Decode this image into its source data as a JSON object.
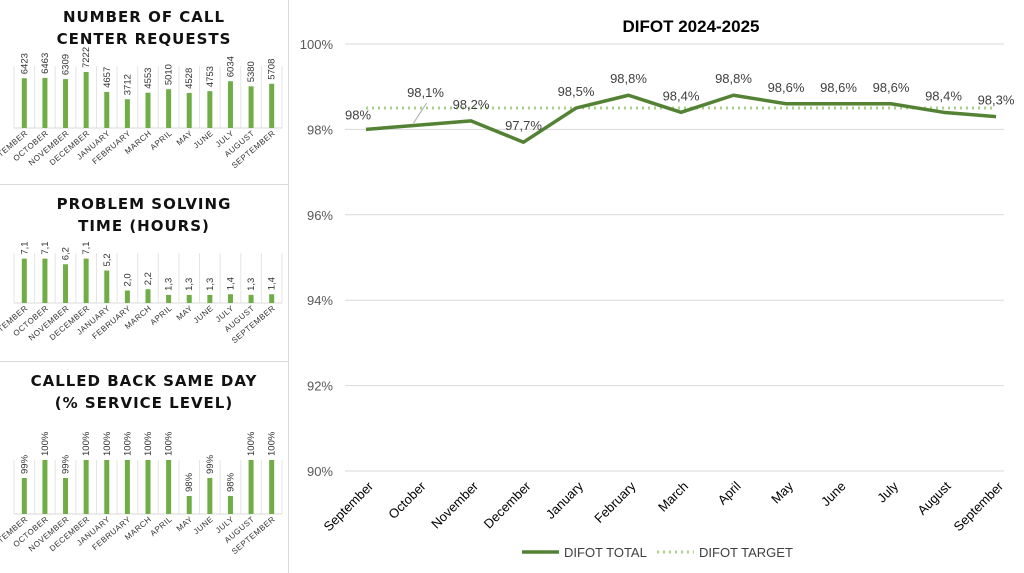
{
  "chart_data": [
    {
      "type": "bar",
      "title": "NUMBER OF CALL CENTER REQUESTS",
      "categories": [
        "SEPTEMBER",
        "OCTOBER",
        "NOVEMBER",
        "DECEMBER",
        "JANUARY",
        "FEBRUARY",
        "MARCH",
        "APRIL",
        "MAY",
        "JUNE",
        "JULY",
        "AUGUST",
        "SEPTEMBER"
      ],
      "values": [
        6423,
        6463,
        6309,
        7222,
        4657,
        3712,
        4553,
        5010,
        4528,
        4753,
        6034,
        5380,
        5708
      ],
      "labels": [
        "6423",
        "6463",
        "6309",
        "7222",
        "4657",
        "3712",
        "4553",
        "5010",
        "4528",
        "4753",
        "6034",
        "5380",
        "5708"
      ],
      "ylim": [
        0,
        8000
      ],
      "color": "#70ad47"
    },
    {
      "type": "bar",
      "title": "PROBLEM SOLVING TIME (HOURS)",
      "categories": [
        "SEPTEMBER",
        "OCTOBER",
        "NOVEMBER",
        "DECEMBER",
        "JANUARY",
        "FEBRUARY",
        "MARCH",
        "APRIL",
        "MAY",
        "JUNE",
        "JULY",
        "AUGUST",
        "SEPTEMBER"
      ],
      "values": [
        7.1,
        7.1,
        6.2,
        7.1,
        5.2,
        2.0,
        2.2,
        1.3,
        1.3,
        1.3,
        1.4,
        1.3,
        1.4
      ],
      "labels": [
        "7,1",
        "7,1",
        "6,2",
        "7,1",
        "5,2",
        "2,0",
        "2,2",
        "1,3",
        "1,3",
        "1,3",
        "1,4",
        "1,3",
        "1,4"
      ],
      "ylim": [
        0,
        8
      ],
      "color": "#70ad47"
    },
    {
      "type": "bar",
      "title": "CALLED BACK SAME DAY (% SERVICE LEVEL)",
      "categories": [
        "SEPTEMBER",
        "OCTOBER",
        "NOVEMBER",
        "DECEMBER",
        "JANUARY",
        "FEBRUARY",
        "MARCH",
        "APRIL",
        "MAY",
        "JUNE",
        "JULY",
        "AUGUST",
        "SEPTEMBER"
      ],
      "values": [
        99,
        100,
        99,
        100,
        100,
        100,
        100,
        100,
        98,
        99,
        98,
        100,
        100
      ],
      "labels": [
        "99%",
        "100%",
        "99%",
        "100%",
        "100%",
        "100%",
        "100%",
        "100%",
        "98%",
        "99%",
        "98%",
        "100%",
        "100%"
      ],
      "ylim": [
        97,
        100
      ],
      "color": "#70ad47"
    },
    {
      "type": "line",
      "title": "DIFOT 2024-2025",
      "categories": [
        "September",
        "October",
        "November",
        "December",
        "January",
        "February",
        "March",
        "April",
        "May",
        "June",
        "July",
        "August",
        "September"
      ],
      "ylim": [
        90,
        100
      ],
      "yticks": [
        "90%",
        "92%",
        "94%",
        "96%",
        "98%",
        "100%"
      ],
      "ytick_values": [
        90,
        92,
        94,
        96,
        98,
        100
      ],
      "grid": true,
      "legend": "bottom",
      "series": [
        {
          "name": "DIFOT TOTAL",
          "values": [
            98.0,
            98.1,
            98.2,
            97.7,
            98.5,
            98.8,
            98.4,
            98.8,
            98.6,
            98.6,
            98.6,
            98.4,
            98.3
          ],
          "labels": [
            "98%",
            "98,1%",
            "98,2%",
            "97,7%",
            "98,5%",
            "98,8%",
            "98,4%",
            "98,8%",
            "98,6%",
            "98,6%",
            "98,6%",
            "98,4%",
            "98,3%"
          ],
          "color": "#548235",
          "style": "solid"
        },
        {
          "name": "DIFOT TARGET",
          "values": [
            98.5,
            98.5,
            98.5,
            98.5,
            98.5,
            98.5,
            98.5,
            98.5,
            98.5,
            98.5,
            98.5,
            98.5,
            98.5
          ],
          "color": "#a9d18e",
          "style": "dotted"
        }
      ]
    }
  ]
}
